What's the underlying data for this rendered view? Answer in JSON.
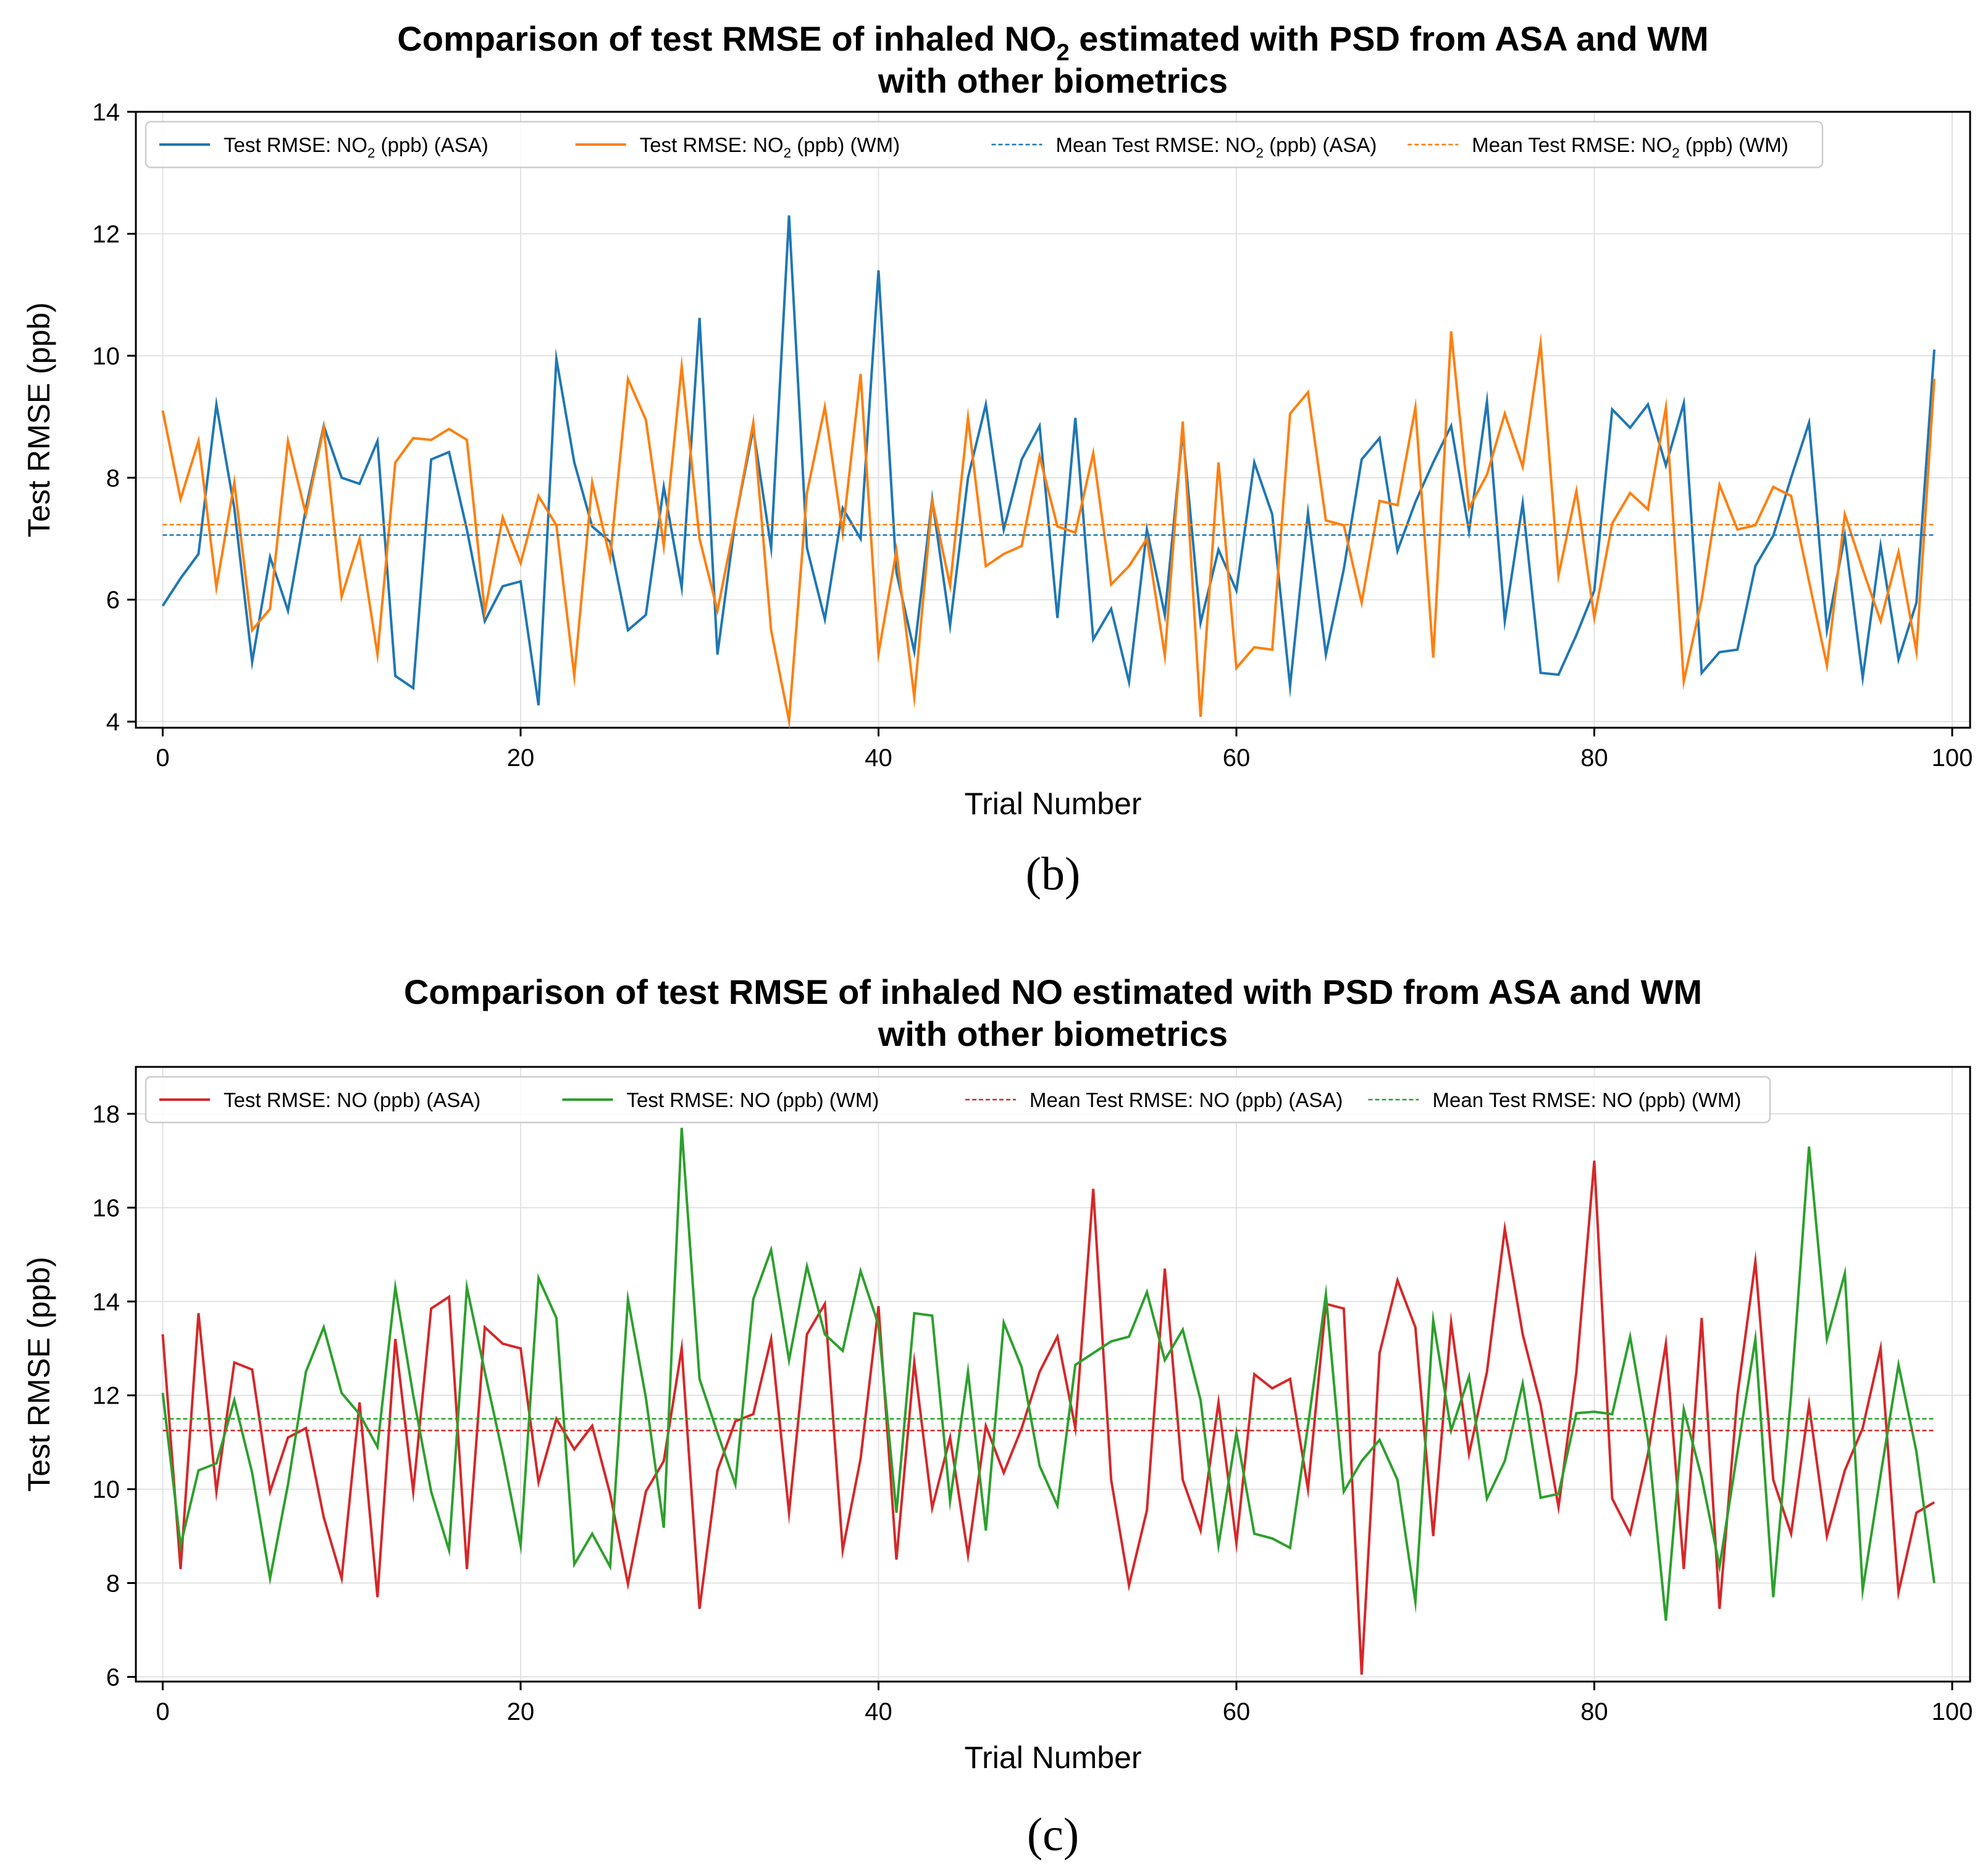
{
  "chart_data": [
    {
      "type": "line",
      "title_line1_pre": "Comparison of test RMSE of inhaled NO",
      "title_line1_sub": "2",
      "title_line1_post": " estimated with PSD from ASA and WM",
      "title_line2": "with other biometrics",
      "xlabel": "Trial Number",
      "ylabel": "Test RMSE (ppb)",
      "xlim": [
        -1.5,
        101
      ],
      "ylim": [
        3.9,
        14
      ],
      "xticks": [
        0,
        20,
        40,
        60,
        80,
        100
      ],
      "yticks": [
        4,
        6,
        8,
        10,
        12,
        14
      ],
      "grid": true,
      "legend_position": "top-left",
      "caption": "(b)",
      "series": [
        {
          "name": "Test RMSE: NO2 (ppb) (ASA)",
          "legend_pre": "Test RMSE: NO",
          "legend_sub": "2",
          "legend_post": " (ppb) (ASA)",
          "color": "#1f77b4",
          "style": "solid",
          "values": [
            5.9,
            6.35,
            6.75,
            9.2,
            7.5,
            4.98,
            6.7,
            5.82,
            7.5,
            8.85,
            8.0,
            7.9,
            8.6,
            4.75,
            4.55,
            8.3,
            8.42,
            7.15,
            5.65,
            6.22,
            6.3,
            4.27,
            9.95,
            8.25,
            7.2,
            6.95,
            5.5,
            5.75,
            7.85,
            6.2,
            10.62,
            5.1,
            7.3,
            8.8,
            6.85,
            12.3,
            6.85,
            5.68,
            7.5,
            7.0,
            11.4,
            6.45,
            5.15,
            7.65,
            5.58,
            8.0,
            9.2,
            7.15,
            8.3,
            8.85,
            5.7,
            8.98,
            5.35,
            5.85,
            4.65,
            7.15,
            5.75,
            8.75,
            5.62,
            6.82,
            6.15,
            8.25,
            7.4,
            4.58,
            7.42,
            5.1,
            6.5,
            8.3,
            8.65,
            6.8,
            7.6,
            8.25,
            8.85,
            7.12,
            9.25,
            5.65,
            7.58,
            4.8,
            4.77,
            5.42,
            6.15,
            9.12,
            8.82,
            9.2,
            8.2,
            9.22,
            4.8,
            5.14,
            5.18,
            6.55,
            7.05,
            8.0,
            8.9,
            5.5,
            7.05,
            4.72,
            6.88,
            5.02,
            5.95,
            10.1
          ]
        },
        {
          "name": "Test RMSE: NO2 (ppb) (WM)",
          "legend_pre": "Test RMSE: NO",
          "legend_sub": "2",
          "legend_post": " (ppb) (WM)",
          "color": "#ff7f0e",
          "style": "solid",
          "values": [
            9.1,
            7.65,
            8.6,
            6.2,
            7.92,
            5.5,
            5.85,
            8.6,
            7.4,
            8.82,
            6.05,
            7.0,
            5.1,
            8.25,
            8.65,
            8.62,
            8.8,
            8.62,
            5.8,
            7.35,
            6.6,
            7.7,
            7.22,
            4.75,
            7.92,
            6.68,
            9.62,
            8.95,
            6.88,
            9.82,
            7.0,
            5.82,
            7.3,
            8.9,
            5.5,
            4.02,
            7.75,
            9.16,
            7.1,
            9.7,
            5.12,
            6.8,
            4.4,
            7.62,
            6.23,
            8.98,
            6.55,
            6.75,
            6.88,
            8.35,
            7.2,
            7.1,
            8.4,
            6.25,
            6.55,
            7.0,
            5.08,
            8.92,
            4.08,
            8.25,
            4.88,
            5.22,
            5.18,
            9.05,
            9.4,
            7.3,
            7.22,
            5.95,
            7.62,
            7.55,
            9.15,
            5.05,
            10.4,
            7.5,
            8.05,
            9.05,
            8.18,
            10.2,
            6.4,
            7.78,
            5.7,
            7.25,
            7.75,
            7.48,
            9.15,
            4.66,
            6.0,
            7.88,
            7.15,
            7.22,
            7.85,
            7.7,
            6.3,
            4.92,
            7.4,
            6.5,
            5.65,
            6.78,
            5.15,
            9.62
          ]
        },
        {
          "name": "Mean Test RMSE: NO2 (ppb) (ASA)",
          "legend_pre": "Mean Test RMSE: NO",
          "legend_sub": "2",
          "legend_post": " (ppb) (ASA)",
          "color": "#1f77b4",
          "style": "dashed",
          "value": 7.06
        },
        {
          "name": "Mean Test RMSE: NO2 (ppb) (WM)",
          "legend_pre": "Mean Test RMSE: NO",
          "legend_sub": "2",
          "legend_post": " (ppb) (WM)",
          "color": "#ff7f0e",
          "style": "dashed",
          "value": 7.23
        }
      ]
    },
    {
      "type": "line",
      "title_line1_pre": "Comparison of test RMSE of inhaled NO estimated with PSD from ASA and WM",
      "title_line1_sub": "",
      "title_line1_post": "",
      "title_line2": "with other biometrics",
      "xlabel": "Trial Number",
      "ylabel": "Test RMSE (ppb)",
      "xlim": [
        -1.5,
        101
      ],
      "ylim": [
        5.9,
        19
      ],
      "xticks": [
        0,
        20,
        40,
        60,
        80,
        100
      ],
      "yticks": [
        6,
        8,
        10,
        12,
        14,
        16,
        18
      ],
      "grid": true,
      "legend_position": "top-left",
      "caption": "(c)",
      "series": [
        {
          "name": "Test RMSE: NO (ppb) (ASA)",
          "legend_pre": "Test RMSE: NO (ppb) (ASA)",
          "legend_sub": "",
          "legend_post": "",
          "color": "#d62728",
          "style": "solid",
          "values": [
            13.3,
            8.3,
            13.75,
            9.95,
            12.7,
            12.55,
            9.95,
            11.1,
            11.3,
            9.4,
            8.1,
            11.85,
            7.7,
            13.2,
            9.95,
            13.85,
            14.1,
            8.3,
            13.45,
            13.1,
            13.0,
            10.15,
            11.5,
            10.85,
            11.35,
            9.9,
            7.98,
            9.95,
            10.6,
            13.0,
            7.45,
            10.4,
            11.45,
            11.6,
            13.2,
            9.5,
            13.3,
            13.95,
            8.7,
            10.65,
            13.9,
            8.5,
            12.7,
            9.6,
            11.1,
            8.6,
            11.35,
            10.35,
            11.3,
            12.5,
            13.25,
            11.3,
            16.4,
            10.2,
            7.95,
            9.55,
            14.7,
            10.2,
            9.12,
            11.85,
            8.85,
            12.45,
            12.15,
            12.35,
            10.0,
            13.95,
            13.85,
            6.05,
            12.9,
            14.45,
            13.45,
            9.0,
            13.55,
            10.75,
            12.5,
            15.55,
            13.3,
            11.8,
            9.62,
            12.5,
            17.0,
            9.8,
            9.05,
            10.75,
            13.1,
            8.3,
            13.65,
            7.45,
            12.0,
            14.85,
            10.2,
            9.05,
            11.8,
            9.0,
            10.4,
            11.3,
            13.0,
            7.8,
            9.5,
            9.72
          ]
        },
        {
          "name": "Test RMSE: NO (ppb) (WM)",
          "legend_pre": "Test RMSE: NO (ppb) (WM)",
          "legend_sub": "",
          "legend_post": "",
          "color": "#2ca02c",
          "style": "solid",
          "values": [
            12.05,
            8.8,
            10.4,
            10.55,
            11.9,
            10.35,
            8.1,
            10.1,
            12.5,
            13.45,
            12.05,
            11.6,
            10.9,
            14.3,
            12.0,
            9.95,
            8.7,
            14.3,
            12.5,
            10.75,
            8.8,
            14.5,
            13.65,
            8.4,
            9.05,
            8.35,
            14.05,
            11.95,
            9.18,
            17.7,
            12.35,
            11.2,
            10.1,
            14.05,
            15.1,
            12.75,
            14.75,
            13.3,
            12.95,
            14.65,
            13.5,
            9.5,
            13.75,
            13.7,
            9.75,
            12.5,
            9.12,
            13.55,
            12.6,
            10.5,
            9.65,
            12.65,
            12.9,
            13.15,
            13.25,
            14.2,
            12.75,
            13.4,
            11.9,
            8.8,
            11.2,
            9.05,
            8.95,
            8.75,
            11.35,
            14.15,
            9.95,
            10.6,
            11.05,
            10.2,
            7.6,
            13.6,
            11.25,
            12.4,
            9.8,
            10.6,
            12.25,
            9.82,
            9.9,
            11.62,
            11.65,
            11.6,
            13.25,
            11.05,
            7.2,
            11.7,
            10.25,
            8.35,
            10.8,
            13.2,
            7.7,
            12.0,
            17.3,
            13.2,
            14.6,
            7.85,
            10.3,
            12.65,
            10.8,
            8.0
          ]
        },
        {
          "name": "Mean Test RMSE: NO (ppb) (ASA)",
          "legend_pre": "Mean Test RMSE: NO (ppb) (ASA)",
          "legend_sub": "",
          "legend_post": "",
          "color": "#d62728",
          "style": "dashed",
          "value": 11.25
        },
        {
          "name": "Mean Test RMSE: NO (ppb) (WM)",
          "legend_pre": "Mean Test RMSE: NO (ppb) (WM)",
          "legend_sub": "",
          "legend_post": "",
          "color": "#2ca02c",
          "style": "dashed",
          "value": 11.5
        }
      ]
    }
  ]
}
